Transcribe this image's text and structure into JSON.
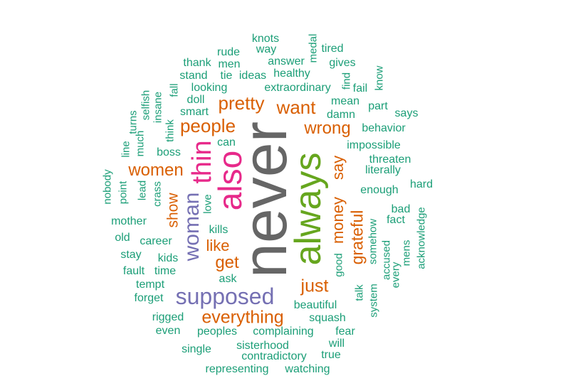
{
  "palette": {
    "green": "#1b9e77",
    "orange": "#d95f02",
    "purple": "#7570b3",
    "pink": "#e7298a",
    "lime": "#66a61e",
    "gray": "#666666"
  },
  "words": [
    "never",
    "always",
    "also",
    "thin",
    "supposed",
    "woman",
    "women",
    "people",
    "pretty",
    "want",
    "wrong",
    "everything",
    "just",
    "grateful",
    "money",
    "say",
    "get",
    "like",
    "show",
    "knots",
    "way",
    "medal",
    "tired",
    "rude",
    "thank",
    "men",
    "answer",
    "gives",
    "stand",
    "tie",
    "ideas",
    "healthy",
    "find",
    "know",
    "fall",
    "looking",
    "extraordinary",
    "fail",
    "turns",
    "selfish",
    "insane",
    "doll",
    "mean",
    "part",
    "smart",
    "damn",
    "says",
    "much",
    "think",
    "behavior",
    "line",
    "can",
    "impossible",
    "boss",
    "threaten",
    "nobody",
    "literally",
    "point",
    "lead",
    "crass",
    "hard",
    "enough",
    "love",
    "bad",
    "acknowledge",
    "mother",
    "fact",
    "kills",
    "old",
    "career",
    "somehow",
    "stay",
    "kids",
    "mens",
    "good",
    "accused",
    "every",
    "fault",
    "time",
    "ask",
    "tempt",
    "talk",
    "forget",
    "system",
    "beautiful",
    "rigged",
    "squash",
    "even",
    "peoples",
    "complaining",
    "fear",
    "will",
    "single",
    "sisterhood",
    "contradictory",
    "true",
    "representing",
    "watching"
  ]
}
